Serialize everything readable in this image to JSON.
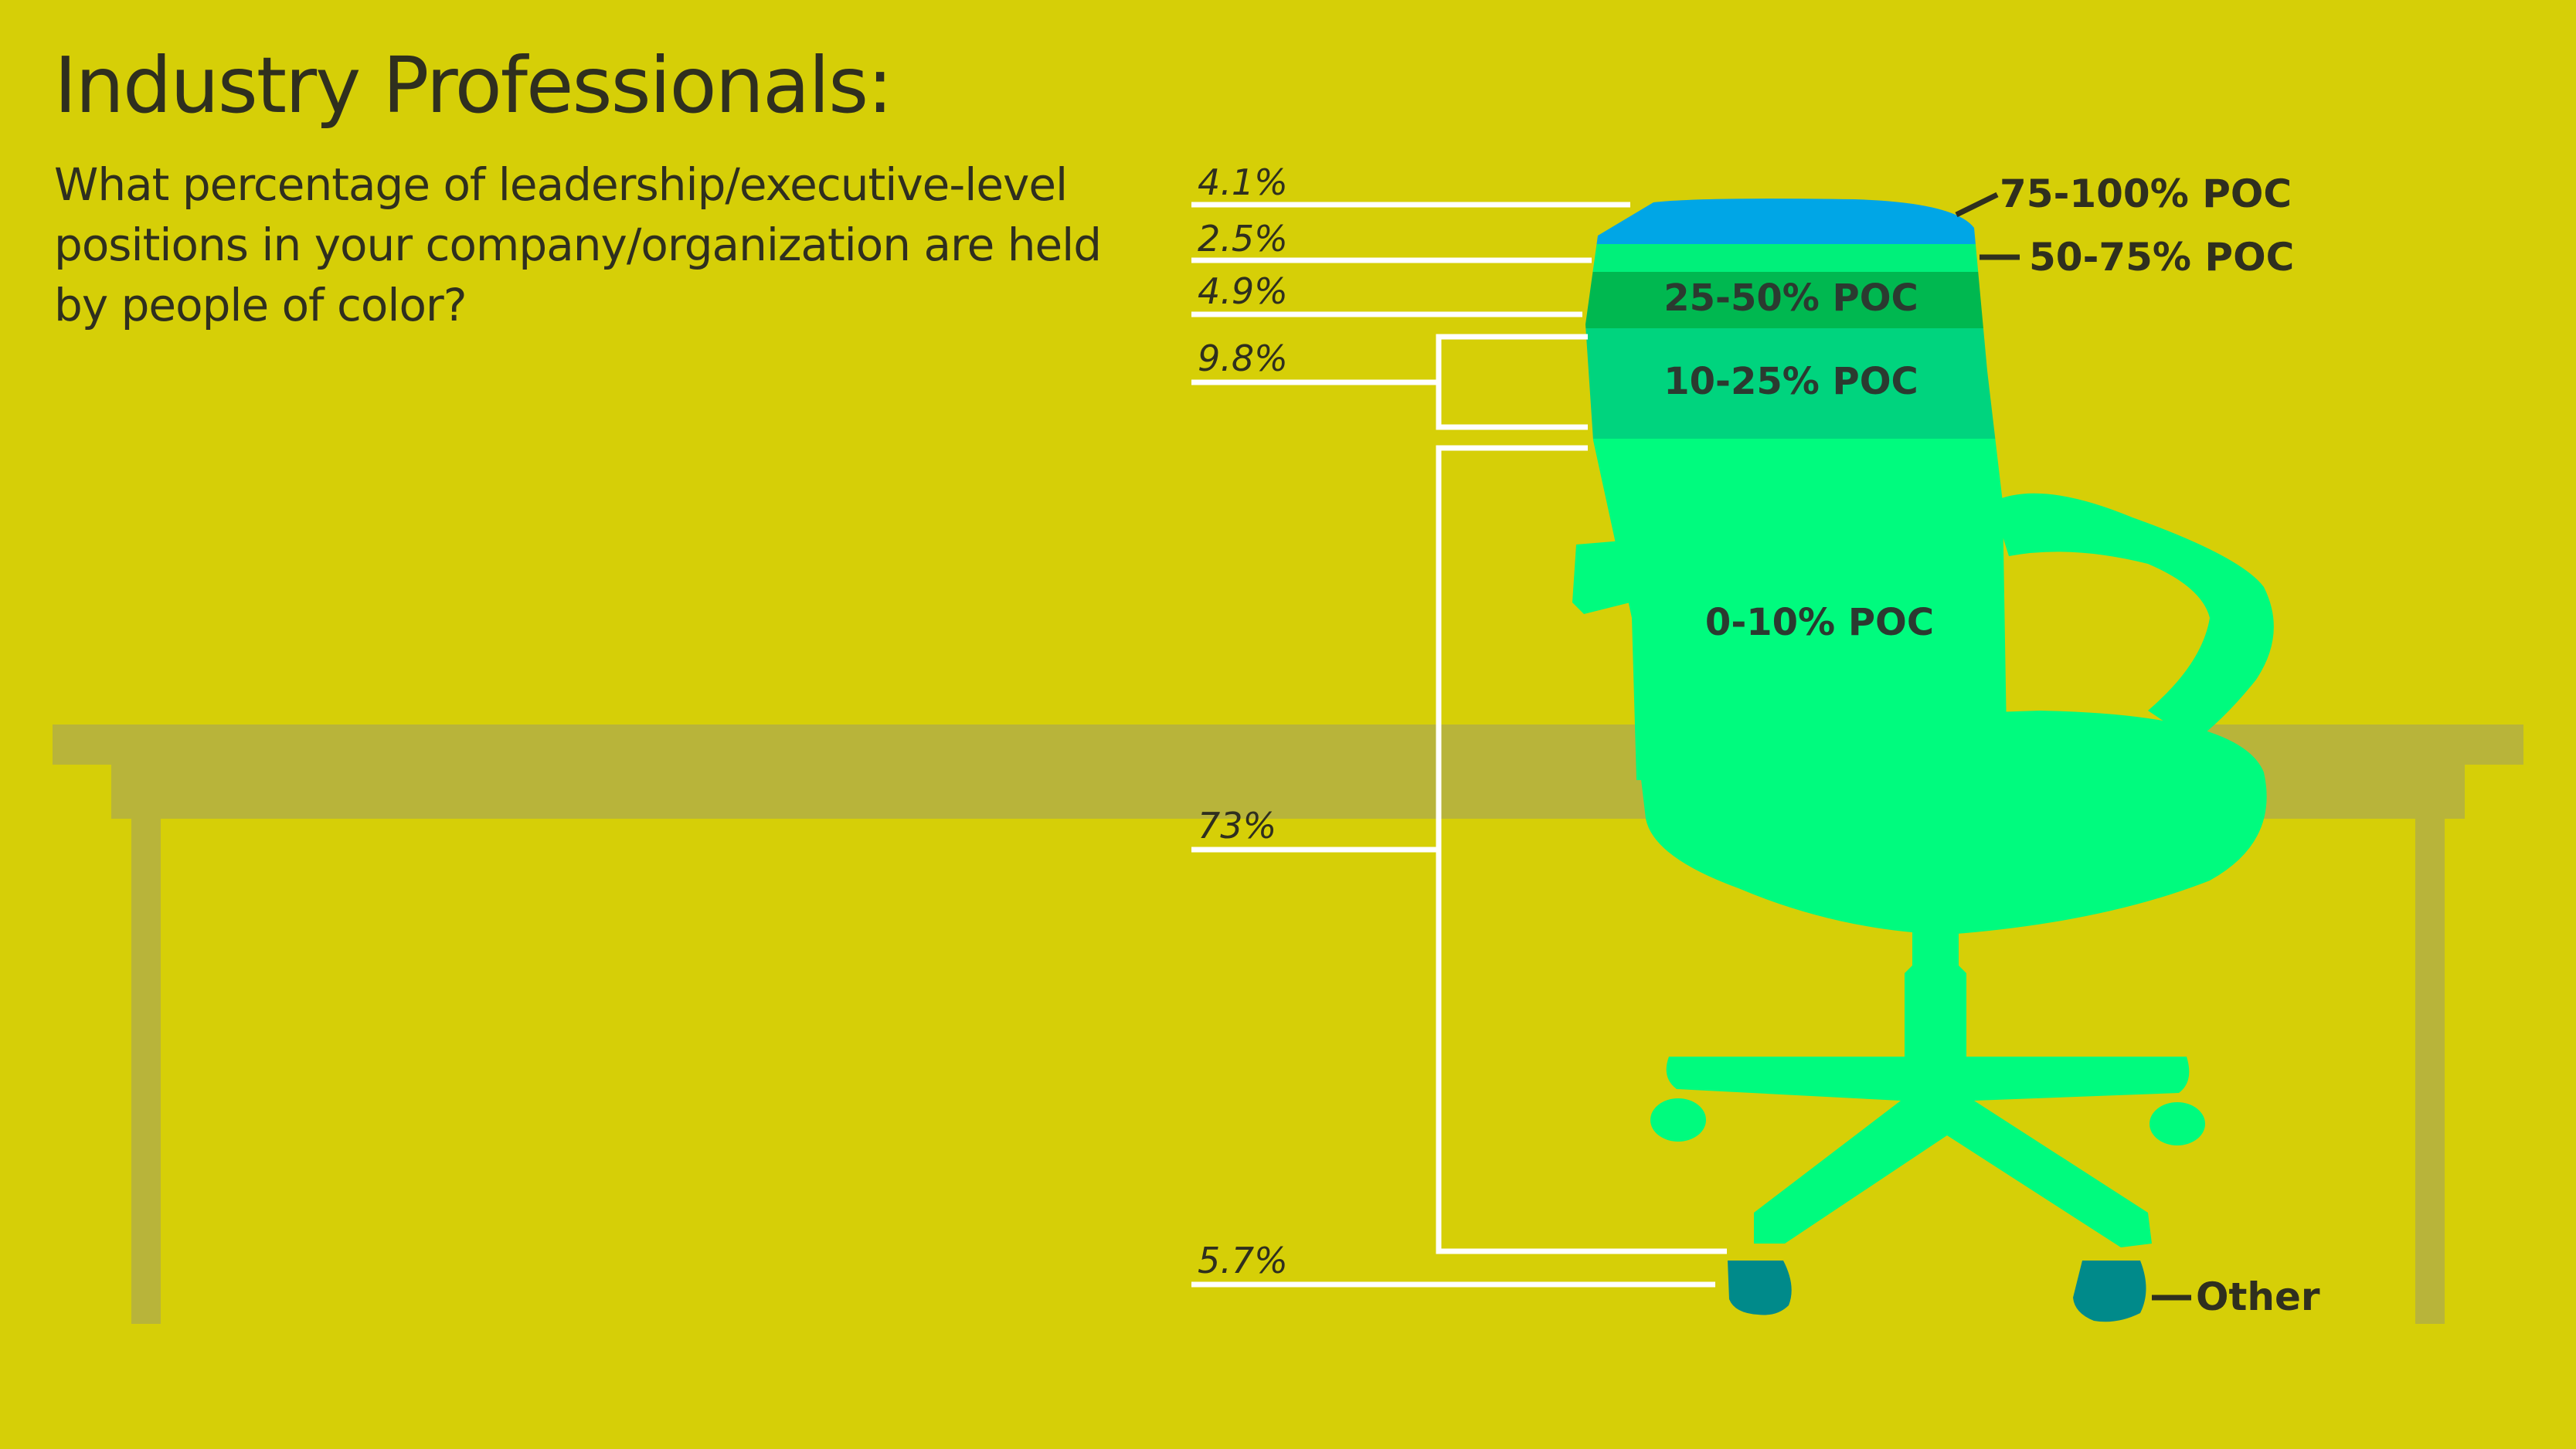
{
  "title": "Industry Professionals:",
  "subtitle": "What percentage of leadership/executive-level positions in your company/organization are held by people of color?",
  "colors": {
    "background": "#d6cf07",
    "table": "#b8b43a",
    "chair_main": "#00fb7e",
    "seg_75_100": "#00a6e6",
    "seg_50_75": "#00f07a",
    "seg_25_50": "#00b850",
    "seg_10_25": "#00d47e",
    "other": "#008a8a",
    "leader_lines": "#ffffff",
    "text": "#2f2f1e"
  },
  "chart_data": {
    "type": "stacked-bar",
    "title": "Industry Professionals:",
    "subtitle": "What percentage of leadership/executive-level positions in your company/organization are held by people of color?",
    "unit": "%",
    "categories": [
      "75-100% POC",
      "50-75% POC",
      "25-50% POC",
      "10-25% POC",
      "0-10% POC",
      "Other"
    ],
    "values": [
      4.1,
      2.5,
      4.9,
      9.8,
      73,
      5.7
    ],
    "value_labels": [
      "4.1%",
      "2.5%",
      "4.9%",
      "9.8%",
      "73%",
      "5.7%"
    ]
  }
}
